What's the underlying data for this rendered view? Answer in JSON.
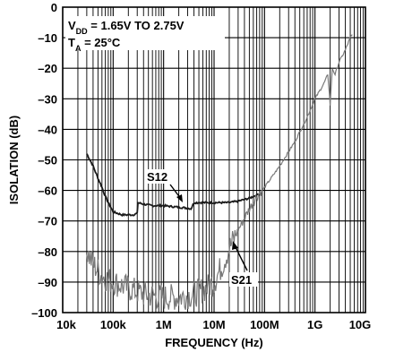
{
  "chart_data": {
    "type": "line",
    "title": "",
    "xlabel": "FREQUENCY (Hz)",
    "ylabel": "ISOLATION (dB)",
    "xscale": "log",
    "xlim": [
      10000,
      10000000000
    ],
    "ylim": [
      -100,
      0
    ],
    "grid": true,
    "x_ticks": [
      {
        "value": 10000,
        "label": "10k"
      },
      {
        "value": 100000,
        "label": "100k"
      },
      {
        "value": 1000000,
        "label": "1M"
      },
      {
        "value": 10000000,
        "label": "10M"
      },
      {
        "value": 100000000,
        "label": "100M"
      },
      {
        "value": 1000000000,
        "label": "1G"
      },
      {
        "value": 10000000000,
        "label": "10G"
      }
    ],
    "y_ticks": [
      {
        "value": 0,
        "label": "0"
      },
      {
        "value": -10,
        "label": "–10"
      },
      {
        "value": -20,
        "label": "–20"
      },
      {
        "value": -30,
        "label": "–30"
      },
      {
        "value": -40,
        "label": "–40"
      },
      {
        "value": -50,
        "label": "–50"
      },
      {
        "value": -60,
        "label": "–60"
      },
      {
        "value": -70,
        "label": "–70"
      },
      {
        "value": -80,
        "label": "–80"
      },
      {
        "value": -90,
        "label": "–90"
      },
      {
        "value": -100,
        "label": "–100"
      }
    ],
    "conditions": {
      "vdd_prefix": "V",
      "vdd_sub": "DD",
      "vdd_text": " = 1.65V TO 2.75V",
      "ta_prefix": "T",
      "ta_sub": "A",
      "ta_text": " = 25°C"
    },
    "series": [
      {
        "name": "S12",
        "color": "#1a1a1a",
        "x": [
          30000,
          40000,
          50000,
          60000,
          70000,
          80000,
          100000,
          150000,
          200000,
          250000,
          300000,
          310000,
          400000,
          600000,
          1000000,
          2000000,
          3000000,
          3500000,
          4000000,
          6000000,
          10000000,
          20000000,
          30000000,
          40000000,
          50000000,
          60000000,
          80000000
        ],
        "y": [
          -48,
          -52,
          -56,
          -59,
          -62,
          -64,
          -67,
          -68,
          -68,
          -68,
          -67.5,
          -64,
          -64.5,
          -65,
          -65,
          -65.5,
          -65.8,
          -66,
          -64,
          -64,
          -64,
          -64,
          -63.5,
          -63,
          -62.5,
          -62,
          -61
        ]
      },
      {
        "name": "S21",
        "color": "#7a7a7a",
        "x": [
          30000,
          40000,
          60000,
          100000,
          200000,
          400000,
          1000000,
          2000000,
          4000000,
          7000000,
          10000000,
          15000000,
          20000000,
          30000000,
          50000000,
          70000000,
          100000000,
          200000000,
          400000000,
          700000000,
          1000000000,
          1500000000,
          1800000000,
          2000000000,
          2200000000,
          2500000000,
          3000000000,
          4000000000,
          5000000000,
          5500000000
        ],
        "y": [
          -80,
          -84,
          -88,
          -90,
          -92,
          -94,
          -95,
          -95,
          -94,
          -92,
          -90,
          -84,
          -79,
          -73,
          -66,
          -62,
          -59,
          -52,
          -44,
          -36,
          -30,
          -25,
          -22,
          -32,
          -20,
          -22,
          -18,
          -14,
          -10,
          -9
        ]
      }
    ],
    "annotations": [
      {
        "text": "S12",
        "series": "S12"
      },
      {
        "text": "S21",
        "series": "S21"
      }
    ]
  }
}
